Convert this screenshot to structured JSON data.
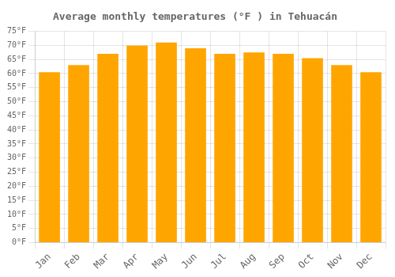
{
  "chart_data": {
    "type": "bar",
    "title": "Average monthly temperatures (°F ) in Tehuacán",
    "categories": [
      "Jan",
      "Feb",
      "Mar",
      "Apr",
      "May",
      "Jun",
      "Jul",
      "Aug",
      "Sep",
      "Oct",
      "Nov",
      "Dec"
    ],
    "values": [
      60.5,
      63.0,
      67.0,
      70.0,
      71.0,
      69.0,
      67.0,
      67.5,
      67.0,
      65.5,
      63.0,
      60.5
    ],
    "color": "#FFA500",
    "ylim": [
      0,
      75
    ],
    "yticks": [
      {
        "value": 0,
        "label": "0°F"
      },
      {
        "value": 5,
        "label": "5°F"
      },
      {
        "value": 10,
        "label": "10°F"
      },
      {
        "value": 15,
        "label": "15°F"
      },
      {
        "value": 20,
        "label": "20°F"
      },
      {
        "value": 25,
        "label": "25°F"
      },
      {
        "value": 30,
        "label": "30°F"
      },
      {
        "value": 35,
        "label": "35°F"
      },
      {
        "value": 40,
        "label": "40°F"
      },
      {
        "value": 45,
        "label": "45°F"
      },
      {
        "value": 50,
        "label": "50°F"
      },
      {
        "value": 55,
        "label": "55°F"
      },
      {
        "value": 60,
        "label": "60°F"
      },
      {
        "value": 65,
        "label": "65°F"
      },
      {
        "value": 70,
        "label": "70°F"
      },
      {
        "value": 75,
        "label": "75°F"
      }
    ],
    "grid": true
  }
}
